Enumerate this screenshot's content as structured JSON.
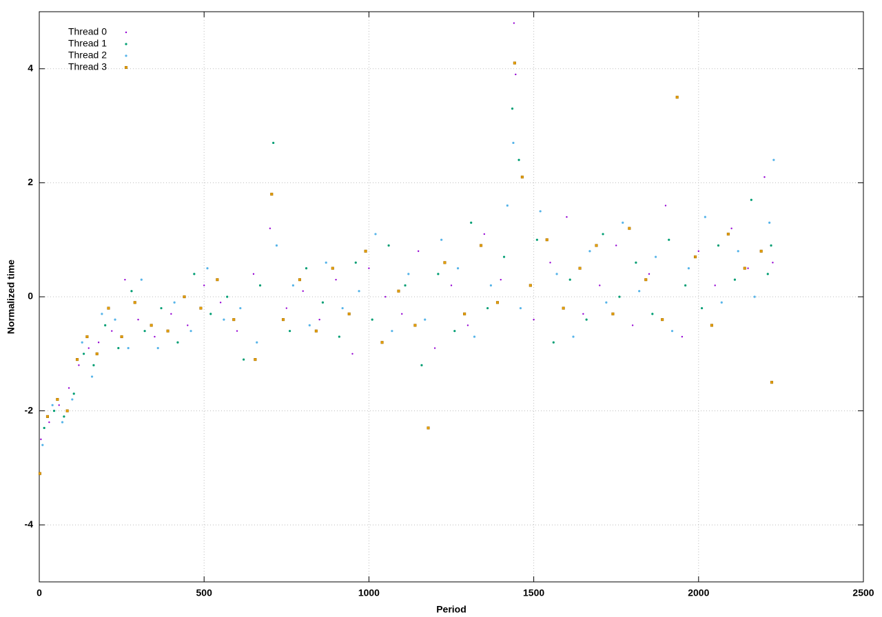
{
  "chart_data": {
    "type": "scatter",
    "x_label": "Period",
    "y_label": "Normalized time",
    "xlim": [
      0,
      2500
    ],
    "ylim": [
      -5,
      5
    ],
    "xticks": [
      0,
      500,
      1000,
      1500,
      2000,
      2500
    ],
    "yticks": [
      -4,
      -2,
      0,
      2,
      4
    ],
    "grid": true,
    "legend": "top-left",
    "series": [
      {
        "name": "Thread 0",
        "color": "#9400d3",
        "x": [
          5,
          30,
          60,
          90,
          120,
          150,
          180,
          220,
          260,
          300,
          350,
          400,
          450,
          500,
          550,
          600,
          650,
          700,
          750,
          800,
          850,
          900,
          950,
          1000,
          1050,
          1100,
          1150,
          1200,
          1250,
          1300,
          1350,
          1400,
          1440,
          1445,
          1500,
          1550,
          1600,
          1650,
          1700,
          1750,
          1800,
          1850,
          1900,
          1950,
          2000,
          2050,
          2100,
          2150,
          2200,
          2225
        ],
        "values": [
          -2.5,
          -2.2,
          -1.9,
          -1.6,
          -1.2,
          -0.9,
          -0.8,
          -0.6,
          0.3,
          -0.4,
          -0.7,
          -0.3,
          -0.5,
          0.2,
          -0.1,
          -0.6,
          0.4,
          1.2,
          -0.2,
          0.1,
          -0.4,
          0.3,
          -1.0,
          0.5,
          0.0,
          -0.3,
          0.8,
          -0.9,
          0.2,
          -0.5,
          1.1,
          0.3,
          4.8,
          3.9,
          -0.4,
          0.6,
          1.4,
          -0.3,
          0.2,
          0.9,
          -0.5,
          0.4,
          1.6,
          -0.7,
          0.8,
          0.2,
          1.2,
          0.5,
          2.1,
          0.6
        ]
      },
      {
        "name": "Thread 1",
        "color": "#009e73",
        "x": [
          15,
          45,
          75,
          105,
          135,
          165,
          200,
          240,
          280,
          320,
          370,
          420,
          470,
          520,
          570,
          620,
          670,
          710,
          760,
          810,
          860,
          910,
          960,
          1010,
          1060,
          1110,
          1160,
          1210,
          1260,
          1310,
          1360,
          1410,
          1435,
          1455,
          1510,
          1560,
          1610,
          1660,
          1710,
          1760,
          1810,
          1860,
          1910,
          1960,
          2010,
          2060,
          2110,
          2160,
          2210,
          2220
        ],
        "values": [
          -2.3,
          -2.0,
          -2.1,
          -1.7,
          -1.0,
          -1.2,
          -0.5,
          -0.9,
          0.1,
          -0.6,
          -0.2,
          -0.8,
          0.4,
          -0.3,
          0.0,
          -1.1,
          0.2,
          2.7,
          -0.6,
          0.5,
          -0.1,
          -0.7,
          0.6,
          -0.4,
          0.9,
          0.2,
          -1.2,
          0.4,
          -0.6,
          1.3,
          -0.2,
          0.7,
          3.3,
          2.4,
          1.0,
          -0.8,
          0.3,
          -0.4,
          1.1,
          0.0,
          0.6,
          -0.3,
          1.0,
          0.2,
          -0.2,
          0.9,
          0.3,
          1.7,
          0.4,
          0.9
        ]
      },
      {
        "name": "Thread 2",
        "color": "#56b4e9",
        "x": [
          10,
          40,
          70,
          100,
          130,
          160,
          190,
          230,
          270,
          310,
          360,
          410,
          460,
          510,
          560,
          610,
          660,
          720,
          770,
          820,
          870,
          920,
          970,
          1020,
          1070,
          1120,
          1170,
          1220,
          1270,
          1320,
          1370,
          1420,
          1438,
          1460,
          1520,
          1570,
          1620,
          1670,
          1720,
          1770,
          1820,
          1870,
          1920,
          1970,
          2020,
          2070,
          2120,
          2170,
          2215,
          2228
        ],
        "values": [
          -2.6,
          -1.9,
          -2.2,
          -1.8,
          -0.8,
          -1.4,
          -0.3,
          -0.4,
          -0.9,
          0.3,
          -0.9,
          -0.1,
          -0.6,
          0.5,
          -0.4,
          -0.2,
          -0.8,
          0.9,
          0.2,
          -0.5,
          0.6,
          -0.2,
          0.1,
          1.1,
          -0.6,
          0.4,
          -0.4,
          1.0,
          0.5,
          -0.7,
          0.2,
          1.6,
          2.7,
          -0.2,
          1.5,
          0.4,
          -0.7,
          0.8,
          -0.1,
          1.3,
          0.1,
          0.7,
          -0.6,
          0.5,
          1.4,
          -0.1,
          0.8,
          0.0,
          1.3,
          2.4
        ]
      },
      {
        "name": "Thread 3",
        "color": "#e69f00",
        "x": [
          2,
          25,
          55,
          85,
          115,
          145,
          175,
          210,
          250,
          290,
          340,
          390,
          440,
          490,
          540,
          590,
          655,
          705,
          740,
          790,
          840,
          890,
          940,
          990,
          1040,
          1090,
          1140,
          1180,
          1230,
          1290,
          1340,
          1390,
          1442,
          1465,
          1490,
          1540,
          1590,
          1640,
          1690,
          1740,
          1790,
          1840,
          1890,
          1935,
          1990,
          2040,
          2090,
          2140,
          2190,
          2222
        ],
        "values": [
          -3.1,
          -2.1,
          -1.8,
          -2.0,
          -1.1,
          -0.7,
          -1.0,
          -0.2,
          -0.7,
          -0.1,
          -0.5,
          -0.6,
          0.0,
          -0.2,
          0.3,
          -0.4,
          -1.1,
          1.8,
          -0.4,
          0.3,
          -0.6,
          0.5,
          -0.3,
          0.8,
          -0.8,
          0.1,
          -0.5,
          -2.3,
          0.6,
          -0.3,
          0.9,
          -0.1,
          4.1,
          2.1,
          0.2,
          1.0,
          -0.2,
          0.5,
          0.9,
          -0.3,
          1.2,
          0.3,
          -0.4,
          3.5,
          0.7,
          -0.5,
          1.1,
          0.5,
          0.8,
          -1.5
        ]
      }
    ]
  }
}
